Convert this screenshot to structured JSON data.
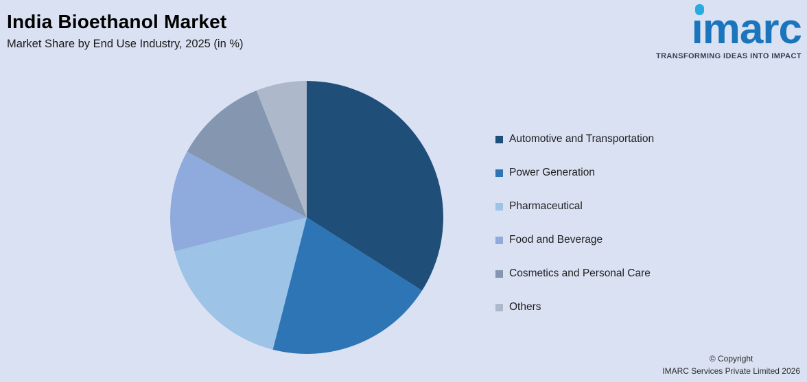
{
  "page": {
    "background": "#d9e1f2"
  },
  "header": {
    "title": "India Bioethanol Market",
    "subtitle": "Market Share by End Use Industry, 2025 (in %)"
  },
  "logo": {
    "brand": "imarc",
    "tagline": "TRANSFORMING IDEAS INTO IMPACT",
    "brand_color": "#1b75bc",
    "dot_color": "#29abe2",
    "tagline_color": "#333f50"
  },
  "chart_data": {
    "type": "pie",
    "title": "India Bioethanol Market",
    "subtitle": "Market Share by End Use Industry, 2025 (in %)",
    "start_angle_deg": -90,
    "direction": "clockwise",
    "legend_position": "right",
    "categories": [
      "Automotive and Transportation",
      "Power Generation",
      "Pharmaceutical",
      "Food and Beverage",
      "Cosmetics and Personal Care",
      "Others"
    ],
    "values": [
      34,
      20,
      17,
      12,
      11,
      6
    ],
    "colors": [
      "#1f4e79",
      "#2e75b6",
      "#9dc3e6",
      "#8faadc",
      "#8496b0",
      "#adb9ca"
    ]
  },
  "footer": {
    "copyright_line1": "© Copyright",
    "copyright_line2": "IMARC Services Private Limited 2026"
  }
}
